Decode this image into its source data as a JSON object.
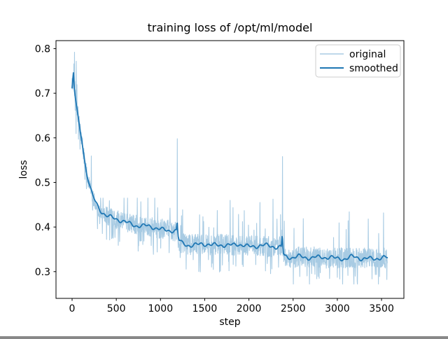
{
  "figure": {
    "background": "#ffffff"
  },
  "chart_data": {
    "type": "line",
    "title": "training loss of /opt/ml/model",
    "xlabel": "step",
    "ylabel": "loss",
    "xlim": [
      -182,
      3753
    ],
    "ylim": [
      0.24,
      0.818
    ],
    "xticks": [
      0,
      500,
      1000,
      1500,
      2000,
      2500,
      3000,
      3500
    ],
    "yticks": [
      0.3,
      0.4,
      0.5,
      0.6,
      0.7,
      0.8
    ],
    "grid": false,
    "x_range": [
      0,
      3565
    ],
    "legend": {
      "position": "upper right",
      "border_color": "#cccccc",
      "background": "#ffffff"
    },
    "series": [
      {
        "name": "original",
        "color": "#a8cbe3",
        "line_width": 1.1,
        "style": "noisy-raw",
        "base": "smoothed",
        "value_clamp": [
          0.272,
          0.799
        ],
        "upper_excursion_cap": 0.465,
        "spikes": [
          [
            27.5,
            0.792
          ],
          [
            1190,
            0.598
          ],
          [
            2380,
            0.558
          ]
        ],
        "noise_amplitude_keypoints": [
          [
            0,
            0.035
          ],
          [
            20,
            0.048
          ],
          [
            50,
            0.03
          ],
          [
            100,
            0.022
          ],
          [
            150,
            0.02
          ],
          [
            250,
            0.024
          ],
          [
            400,
            0.027
          ],
          [
            700,
            0.028
          ],
          [
            1100,
            0.028
          ],
          [
            1250,
            0.029
          ],
          [
            2300,
            0.029
          ],
          [
            2450,
            0.029
          ],
          [
            3565,
            0.029
          ]
        ]
      },
      {
        "name": "smoothed",
        "color": "#1f77b4",
        "line_width": 1.8,
        "style": "smooth",
        "keypoints": [
          [
            0,
            0.712
          ],
          [
            8,
            0.732
          ],
          [
            16,
            0.748
          ],
          [
            24,
            0.712
          ],
          [
            35,
            0.693
          ],
          [
            50,
            0.672
          ],
          [
            70,
            0.645
          ],
          [
            90,
            0.618
          ],
          [
            110,
            0.595
          ],
          [
            130,
            0.565
          ],
          [
            150,
            0.538
          ],
          [
            170,
            0.515
          ],
          [
            190,
            0.498
          ],
          [
            210,
            0.483
          ],
          [
            235,
            0.468
          ],
          [
            265,
            0.455
          ],
          [
            300,
            0.444
          ],
          [
            340,
            0.435
          ],
          [
            390,
            0.427
          ],
          [
            450,
            0.421
          ],
          [
            520,
            0.415
          ],
          [
            590,
            0.411
          ],
          [
            660,
            0.408
          ],
          [
            730,
            0.405
          ],
          [
            800,
            0.402
          ],
          [
            870,
            0.4
          ],
          [
            940,
            0.398
          ],
          [
            1010,
            0.396
          ],
          [
            1070,
            0.394
          ],
          [
            1130,
            0.392
          ],
          [
            1180,
            0.39
          ],
          [
            1188,
            0.412
          ],
          [
            1198,
            0.378
          ],
          [
            1212,
            0.367
          ],
          [
            1240,
            0.363
          ],
          [
            1290,
            0.361
          ],
          [
            1340,
            0.36
          ],
          [
            1400,
            0.361
          ],
          [
            1460,
            0.362
          ],
          [
            1520,
            0.36
          ],
          [
            1580,
            0.358
          ],
          [
            1640,
            0.36
          ],
          [
            1700,
            0.362
          ],
          [
            1760,
            0.36
          ],
          [
            1820,
            0.358
          ],
          [
            1880,
            0.36
          ],
          [
            1940,
            0.359
          ],
          [
            2000,
            0.357
          ],
          [
            2060,
            0.358
          ],
          [
            2120,
            0.359
          ],
          [
            2180,
            0.357
          ],
          [
            2240,
            0.356
          ],
          [
            2300,
            0.356
          ],
          [
            2355,
            0.357
          ],
          [
            2368,
            0.356
          ],
          [
            2377,
            0.386
          ],
          [
            2388,
            0.342
          ],
          [
            2405,
            0.335
          ],
          [
            2440,
            0.332
          ],
          [
            2500,
            0.331
          ],
          [
            2560,
            0.333
          ],
          [
            2620,
            0.331
          ],
          [
            2680,
            0.333
          ],
          [
            2740,
            0.334
          ],
          [
            2800,
            0.331
          ],
          [
            2860,
            0.33
          ],
          [
            2920,
            0.332
          ],
          [
            2980,
            0.33
          ],
          [
            3040,
            0.331
          ],
          [
            3100,
            0.33
          ],
          [
            3160,
            0.332
          ],
          [
            3220,
            0.33
          ],
          [
            3280,
            0.329
          ],
          [
            3340,
            0.331
          ],
          [
            3400,
            0.33
          ],
          [
            3460,
            0.33
          ],
          [
            3520,
            0.33
          ],
          [
            3565,
            0.329
          ]
        ]
      }
    ]
  }
}
